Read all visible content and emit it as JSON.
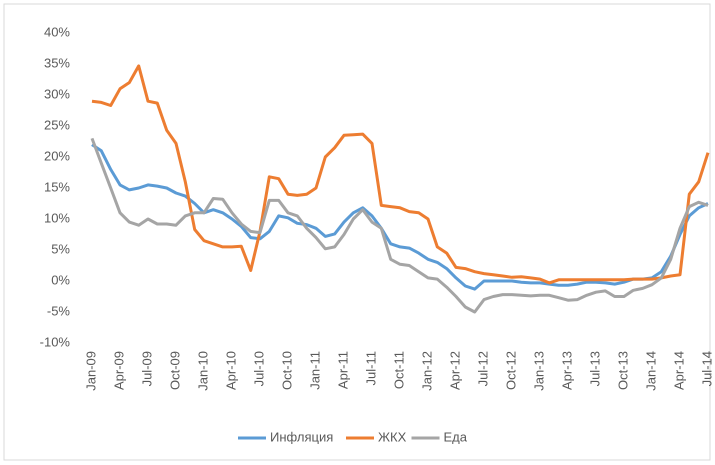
{
  "chart_data": {
    "type": "line",
    "categories": [
      "Jan-09",
      null,
      null,
      "Apr-09",
      null,
      null,
      "Jul-09",
      null,
      null,
      "Oct-09",
      null,
      null,
      "Jan-10",
      null,
      null,
      "Apr-10",
      null,
      null,
      "Jul-10",
      null,
      null,
      "Oct-10",
      null,
      null,
      "Jan-11",
      null,
      null,
      "Apr-11",
      null,
      null,
      "Jul-11",
      null,
      null,
      "Oct-11",
      null,
      null,
      "Jan-12",
      null,
      null,
      "Apr-12",
      null,
      null,
      "Jul-12",
      null,
      null,
      "Oct-12",
      null,
      null,
      "Jan-13",
      null,
      null,
      "Apr-13",
      null,
      null,
      "Jul-13",
      null,
      null,
      "Oct-13",
      null,
      null,
      "Jan-14",
      null,
      null,
      "Apr-14",
      null,
      null,
      "Jul-14"
    ],
    "series": [
      {
        "name": "Инфляция",
        "color": "#5b9bd5",
        "values": [
          22,
          21,
          18,
          15.5,
          14.7,
          15,
          15.5,
          15.3,
          15,
          14.2,
          13.7,
          12.5,
          11,
          11.5,
          11,
          10,
          8.8,
          7,
          6.8,
          8,
          10.5,
          10.2,
          9.3,
          9.1,
          8.5,
          7.2,
          7.6,
          9.5,
          11,
          11.8,
          10.5,
          8.5,
          6,
          5.5,
          5.3,
          4.5,
          3.5,
          3,
          2,
          0.5,
          -0.8,
          -1.3,
          0,
          0,
          0,
          0,
          -0.2,
          -0.3,
          -0.3,
          -0.5,
          -0.7,
          -0.7,
          -0.5,
          -0.2,
          -0.2,
          -0.3,
          -0.5,
          -0.2,
          0.3,
          0.3,
          0.5,
          1.5,
          4,
          7.5,
          10.5,
          11.8,
          12.5
        ]
      },
      {
        "name": "ЖКХ",
        "color": "#ed7d31",
        "values": [
          29,
          28.8,
          28.3,
          31,
          32,
          34.7,
          29,
          28.7,
          24.3,
          22.2,
          16,
          8.3,
          6.5,
          6,
          5.5,
          5.5,
          5.6,
          1.7,
          8,
          16.8,
          16.5,
          14,
          13.8,
          14,
          15,
          20,
          21.5,
          23.5,
          23.6,
          23.7,
          22.2,
          12.2,
          12,
          11.8,
          11.2,
          11,
          10,
          5.5,
          4.5,
          2.2,
          2,
          1.5,
          1.2,
          1,
          0.8,
          0.6,
          0.7,
          0.5,
          0.3,
          -0.3,
          0.2,
          0.2,
          0.2,
          0.2,
          0.2,
          0.2,
          0.2,
          0.2,
          0.3,
          0.3,
          0.3,
          0.5,
          0.8,
          1,
          14,
          16,
          20.7
        ]
      },
      {
        "name": "Еда",
        "color": "#a5a5a5",
        "values": [
          23,
          19,
          15,
          11,
          9.5,
          9,
          10,
          9.2,
          9.2,
          9,
          10.5,
          11,
          11,
          13.3,
          13.2,
          11,
          9.2,
          8,
          7.8,
          13,
          13,
          11,
          10.5,
          8.5,
          7,
          5.2,
          5.5,
          7.5,
          10,
          11.5,
          9.5,
          8.5,
          3.5,
          2.7,
          2.5,
          1.5,
          0.5,
          0.3,
          -1,
          -2.5,
          -4.2,
          -5,
          -3,
          -2.5,
          -2.2,
          -2.2,
          -2.3,
          -2.4,
          -2.3,
          -2.3,
          -2.7,
          -3.1,
          -3,
          -2.3,
          -1.8,
          -1.6,
          -2.5,
          -2.5,
          -1.5,
          -1.2,
          -0.6,
          0.5,
          3.5,
          8.5,
          12,
          12.7,
          12.2
        ]
      }
    ],
    "ylim": [
      -10,
      40
    ],
    "yticks": [
      {
        "value": -10,
        "label": "-10%"
      },
      {
        "value": -5,
        "label": "-5%"
      },
      {
        "value": 0,
        "label": "0%"
      },
      {
        "value": 5,
        "label": "5%"
      },
      {
        "value": 10,
        "label": "10%"
      },
      {
        "value": 15,
        "label": "15%"
      },
      {
        "value": 20,
        "label": "20%"
      },
      {
        "value": 25,
        "label": "25%"
      },
      {
        "value": 30,
        "label": "30%"
      },
      {
        "value": 35,
        "label": "35%"
      },
      {
        "value": 40,
        "label": "40%"
      }
    ],
    "grid": false,
    "legend": "bottom"
  }
}
